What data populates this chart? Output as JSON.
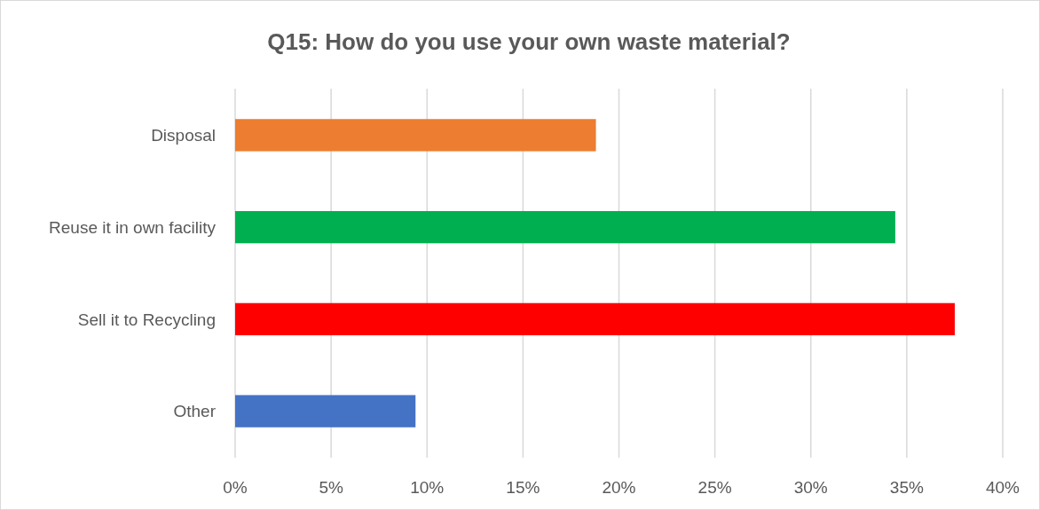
{
  "chart_data": {
    "type": "bar",
    "orientation": "horizontal",
    "title": "Q15: How do you use your own waste material?",
    "categories": [
      "Disposal",
      "Reuse it in own facility",
      "Sell it to Recycling",
      "Other"
    ],
    "values": [
      18.8,
      34.4,
      37.5,
      9.4
    ],
    "colors": [
      "#ed7d31",
      "#00b050",
      "#ff0000",
      "#4472c4"
    ],
    "xlim": [
      0,
      40
    ],
    "xticks": [
      {
        "value": 0,
        "label": "0%"
      },
      {
        "value": 5,
        "label": "5%"
      },
      {
        "value": 10,
        "label": "10%"
      },
      {
        "value": 15,
        "label": "15%"
      },
      {
        "value": 20,
        "label": "20%"
      },
      {
        "value": 25,
        "label": "25%"
      },
      {
        "value": 30,
        "label": "30%"
      },
      {
        "value": 35,
        "label": "35%"
      },
      {
        "value": 40,
        "label": "40%"
      }
    ],
    "grid": "x"
  }
}
